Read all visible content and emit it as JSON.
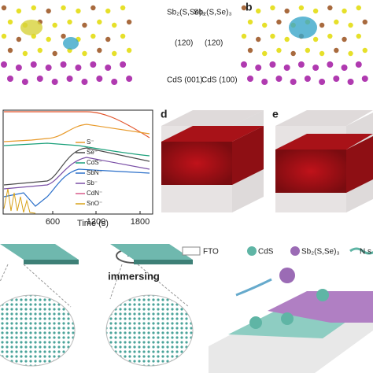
{
  "panel_a": {
    "film_label": "Sb₂(S,Se)₃",
    "film_plane": "(120)",
    "substrate_label": "CdS (001)"
  },
  "panel_b": {
    "letter": "b",
    "film_label": "Sb₂(S,Se)₃",
    "film_plane": "(120)",
    "substrate_label": "CdS (100)"
  },
  "panel_c": {
    "legend": [
      "S⁻",
      "Se⁻",
      "CdS⁻",
      "SbN⁻",
      "Sb⁻",
      "CdN⁻",
      "SnO⁻"
    ],
    "x_ticks": [
      "600",
      "1200",
      "1800"
    ],
    "x_label": "Time (s)"
  },
  "panel_d": {
    "letter": "d"
  },
  "panel_e": {
    "letter": "e"
  },
  "panel_f": {
    "step_label": "immersing"
  },
  "panel_g": {
    "legend": [
      "FTO",
      "CdS",
      "Sb₂(S,Se)₃",
      "N s"
    ]
  }
}
